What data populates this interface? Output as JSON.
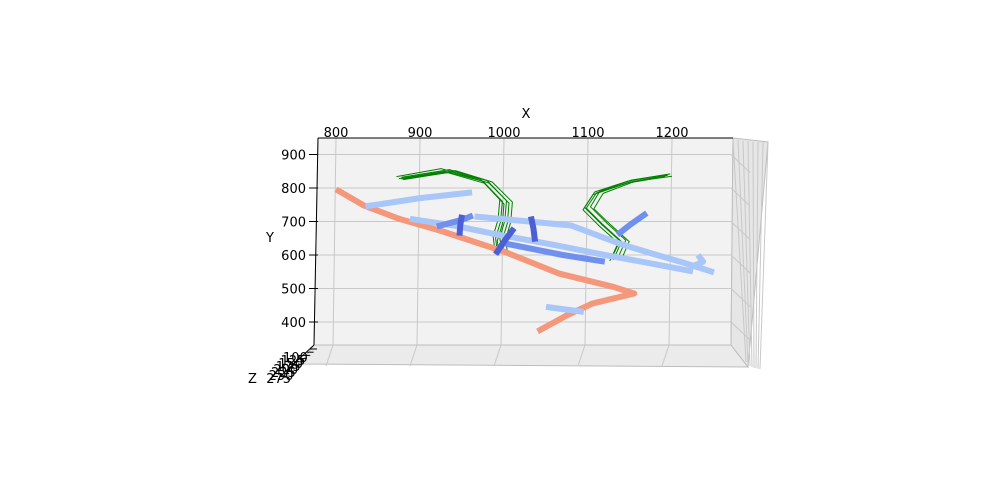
{
  "chart_data": {
    "type": "line",
    "projection": "3d",
    "title": "",
    "xlabel": "X",
    "ylabel": "Y",
    "zlabel": "Z",
    "xlim": [
      775,
      1270
    ],
    "ylim": [
      340,
      950
    ],
    "x_ticks": [
      800,
      900,
      1000,
      1100,
      1200
    ],
    "y_ticks": [
      400,
      500,
      600,
      700,
      800,
      900
    ],
    "z_tick_labels": [
      "100",
      "125",
      "150",
      "175",
      "200",
      "225",
      "250",
      "275"
    ],
    "grid": true,
    "legend": "none",
    "colors": {
      "salmon": "#f4977a",
      "light_blue": "#a9c6f8",
      "mid_blue": "#6f90ee",
      "dark_blue": "#4c5fd4",
      "green": "#008000",
      "pane": "#f2f2f2",
      "grid": "#c8c8c8"
    },
    "series": [
      {
        "color": "salmon",
        "width": 6,
        "points": [
          [
            800,
            796
          ],
          [
            833,
            748
          ],
          [
            875,
            708
          ],
          [
            925,
            672
          ],
          [
            1000,
            610
          ],
          [
            1065,
            545
          ],
          [
            1130,
            505
          ],
          [
            1155,
            485
          ],
          [
            1105,
            455
          ],
          [
            1075,
            420
          ],
          [
            1040,
            372
          ]
        ]
      },
      {
        "color": "light_blue",
        "width": 6,
        "points": [
          [
            835,
            745
          ],
          [
            900,
            770
          ],
          [
            962,
            787
          ]
        ]
      },
      {
        "color": "light_blue",
        "width": 6,
        "points": [
          [
            888,
            708
          ],
          [
            940,
            688
          ],
          [
            990,
            662
          ],
          [
            1060,
            630
          ],
          [
            1120,
            600
          ],
          [
            1175,
            575
          ],
          [
            1225,
            551
          ]
        ]
      },
      {
        "color": "light_blue",
        "width": 6,
        "points": [
          [
            965,
            715
          ],
          [
            1030,
            700
          ],
          [
            1080,
            688
          ],
          [
            1110,
            660
          ],
          [
            1140,
            632
          ],
          [
            1175,
            605
          ],
          [
            1210,
            580
          ],
          [
            1250,
            548
          ]
        ]
      },
      {
        "color": "light_blue",
        "width": 6,
        "points": [
          [
            1231,
            600
          ],
          [
            1237,
            580
          ],
          [
            1224,
            566
          ]
        ]
      },
      {
        "color": "light_blue",
        "width": 6,
        "points": [
          [
            1050,
            445
          ],
          [
            1095,
            430
          ]
        ]
      },
      {
        "color": "mid_blue",
        "width": 6,
        "points": [
          [
            920,
            685
          ],
          [
            950,
            705
          ],
          [
            963,
            718
          ]
        ]
      },
      {
        "color": "mid_blue",
        "width": 6,
        "points": [
          [
            1000,
            635
          ],
          [
            1030,
            620
          ],
          [
            1070,
            600
          ],
          [
            1120,
            580
          ]
        ]
      },
      {
        "color": "mid_blue",
        "width": 6,
        "points": [
          [
            1135,
            660
          ],
          [
            1150,
            690
          ],
          [
            1170,
            725
          ]
        ]
      },
      {
        "color": "dark_blue",
        "width": 6,
        "points": [
          [
            950,
            720
          ],
          [
            948,
            690
          ],
          [
            947,
            658
          ]
        ]
      },
      {
        "color": "dark_blue",
        "width": 6,
        "points": [
          [
            1012,
            680
          ],
          [
            1000,
            640
          ],
          [
            990,
            602
          ]
        ]
      },
      {
        "color": "dark_blue",
        "width": 6,
        "points": [
          [
            1032,
            715
          ],
          [
            1035,
            680
          ],
          [
            1037,
            640
          ]
        ]
      },
      {
        "color": "green",
        "width": 1,
        "points": [
          [
            875,
            828
          ],
          [
            930,
            850
          ],
          [
            975,
            820
          ],
          [
            998,
            760
          ],
          [
            996,
            700
          ],
          [
            990,
            650
          ],
          [
            992,
            610
          ]
        ]
      },
      {
        "color": "green",
        "width": 1,
        "points": [
          [
            878,
            832
          ],
          [
            935,
            855
          ],
          [
            980,
            822
          ],
          [
            1003,
            762
          ],
          [
            1001,
            702
          ],
          [
            995,
            652
          ],
          [
            997,
            612
          ]
        ]
      },
      {
        "color": "green",
        "width": 1,
        "points": [
          [
            880,
            825
          ],
          [
            938,
            848
          ],
          [
            982,
            815
          ],
          [
            1006,
            755
          ],
          [
            1004,
            695
          ],
          [
            998,
            645
          ],
          [
            1000,
            605
          ]
        ]
      },
      {
        "color": "green",
        "width": 1,
        "points": [
          [
            872,
            834
          ],
          [
            925,
            858
          ],
          [
            972,
            826
          ],
          [
            995,
            766
          ],
          [
            993,
            706
          ],
          [
            987,
            656
          ],
          [
            989,
            616
          ]
        ]
      },
      {
        "color": "green",
        "width": 1,
        "points": [
          [
            883,
            830
          ],
          [
            942,
            852
          ],
          [
            986,
            818
          ],
          [
            1010,
            758
          ],
          [
            1008,
            698
          ],
          [
            1002,
            648
          ],
          [
            1004,
            608
          ]
        ]
      },
      {
        "color": "green",
        "width": 1,
        "points": [
          [
            878,
            827
          ],
          [
            933,
            846
          ],
          [
            977,
            814
          ],
          [
            1000,
            752
          ],
          [
            998,
            692
          ],
          [
            992,
            642
          ],
          [
            994,
            602
          ]
        ]
      },
      {
        "color": "green",
        "width": 1,
        "points": [
          [
            1195,
            838
          ],
          [
            1150,
            818
          ],
          [
            1110,
            785
          ],
          [
            1098,
            740
          ],
          [
            1118,
            690
          ],
          [
            1140,
            640
          ],
          [
            1130,
            585
          ]
        ]
      },
      {
        "color": "green",
        "width": 1,
        "points": [
          [
            1198,
            842
          ],
          [
            1152,
            824
          ],
          [
            1114,
            790
          ],
          [
            1103,
            744
          ],
          [
            1123,
            694
          ],
          [
            1145,
            644
          ],
          [
            1135,
            588
          ]
        ]
      },
      {
        "color": "green",
        "width": 1,
        "points": [
          [
            1192,
            834
          ],
          [
            1146,
            814
          ],
          [
            1106,
            780
          ],
          [
            1094,
            735
          ],
          [
            1114,
            685
          ],
          [
            1136,
            636
          ],
          [
            1126,
            582
          ]
        ]
      },
      {
        "color": "green",
        "width": 1,
        "points": [
          [
            1200,
            835
          ],
          [
            1156,
            820
          ],
          [
            1118,
            784
          ],
          [
            1107,
            738
          ],
          [
            1127,
            690
          ],
          [
            1149,
            640
          ],
          [
            1139,
            583
          ]
        ]
      },
      {
        "color": "green",
        "width": 1,
        "points": [
          [
            1194,
            840
          ],
          [
            1148,
            821
          ],
          [
            1108,
            788
          ],
          [
            1096,
            742
          ],
          [
            1116,
            692
          ],
          [
            1138,
            642
          ],
          [
            1128,
            590
          ]
        ]
      }
    ]
  }
}
